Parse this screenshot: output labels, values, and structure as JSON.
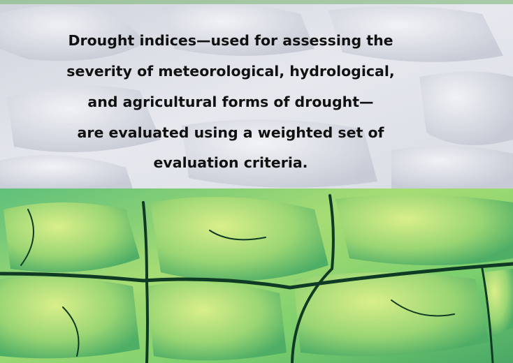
{
  "callout": {
    "lines": [
      "Drought indices—used for assessing the",
      "severity of meteorological, hydrological,",
      "and agricultural forms of drought—",
      "are evaluated using a weighted set of",
      "evaluation criteria."
    ]
  }
}
